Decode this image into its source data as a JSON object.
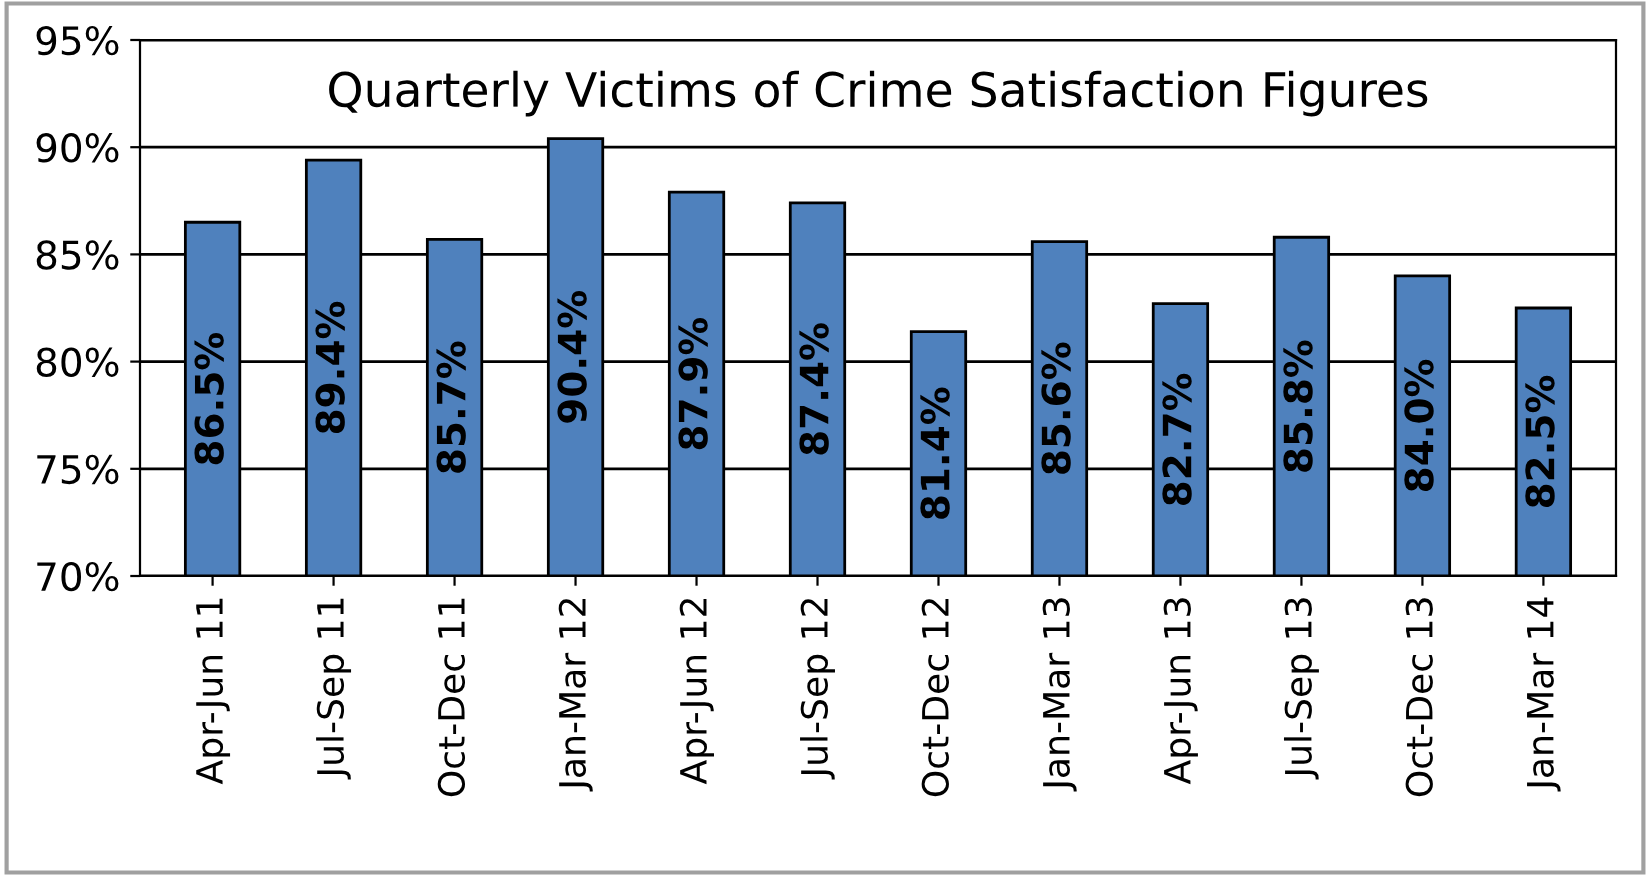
{
  "chart_data": {
    "type": "bar",
    "title": "Quarterly Victims of Crime Satisfaction Figures",
    "categories": [
      "Apr-Jun 11",
      "Jul-Sep 11",
      "Oct-Dec 11",
      "Jan-Mar 12",
      "Apr-Jun 12",
      "Jul-Sep 12",
      "Oct-Dec 12",
      "Jan-Mar 13",
      "Apr-Jun 13",
      "Jul-Sep 13",
      "Oct-Dec 13",
      "Jan-Mar 14"
    ],
    "values": [
      86.5,
      89.4,
      85.7,
      90.4,
      87.9,
      87.4,
      81.4,
      85.6,
      82.7,
      85.8,
      84.0,
      82.5
    ],
    "value_labels": [
      "86.5%",
      "89.4%",
      "85.7%",
      "90.4%",
      "87.9%",
      "87.4%",
      "81.4%",
      "85.6%",
      "82.7%",
      "85.8%",
      "84.0%",
      "82.5%"
    ],
    "color": "#4f81bd",
    "ylim": [
      70,
      95
    ],
    "yticks": [
      {
        "value": 70,
        "label": "70%"
      },
      {
        "value": 75,
        "label": "75%"
      },
      {
        "value": 80,
        "label": "80%"
      },
      {
        "value": 85,
        "label": "85%"
      },
      {
        "value": 90,
        "label": "90%"
      },
      {
        "value": 95,
        "label": "95%"
      }
    ],
    "grid": "y"
  }
}
